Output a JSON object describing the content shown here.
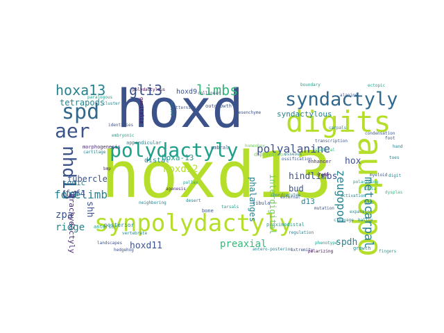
{
  "cloud": {
    "background": "#ffffff",
    "palette": {
      "navy": "#3b528b",
      "blue": "#31688e",
      "teal": "#26828e",
      "cyan": "#1f9e89",
      "green": "#35b779",
      "lime": "#6ece58",
      "yellow": "#b5de2b",
      "purple": "#482878",
      "dark": "#440154"
    },
    "words": [
      {
        "text": "hoxd",
        "color": "navy"
      },
      {
        "text": "hoxd13",
        "color": "yellow"
      },
      {
        "text": "synpolydactyly",
        "color": "yellow"
      },
      {
        "text": "autopod",
        "color": "yellow"
      },
      {
        "text": "digits",
        "color": "yellow"
      },
      {
        "text": "polydactyly",
        "color": "cyan"
      },
      {
        "text": "syndactyly",
        "color": "blue"
      },
      {
        "text": "spd",
        "color": "blue"
      },
      {
        "text": "aer",
        "color": "navy"
      },
      {
        "text": "nhd13",
        "color": "navy"
      },
      {
        "text": "hoxa13",
        "color": "teal"
      },
      {
        "text": "gli3",
        "color": "navy"
      },
      {
        "text": "limbs",
        "color": "green"
      },
      {
        "text": "polyalanine",
        "color": "navy"
      },
      {
        "text": "metacarpal",
        "color": "teal"
      },
      {
        "text": "zeugopod",
        "color": "teal"
      },
      {
        "text": "forelimb",
        "color": "teal"
      },
      {
        "text": "preaxial",
        "color": "green"
      },
      {
        "text": "hoxd11",
        "color": "navy"
      },
      {
        "text": "spdh",
        "color": "teal"
      },
      {
        "text": "hindlimbs",
        "color": "navy"
      },
      {
        "text": "tetrapods",
        "color": "teal"
      },
      {
        "text": "tubercle",
        "color": "navy"
      },
      {
        "text": "brachydactyly",
        "color": "purple"
      },
      {
        "text": "fgf4",
        "color": "navy"
      },
      {
        "text": "sonic",
        "color": "teal"
      },
      {
        "text": "zpa",
        "color": "navy"
      },
      {
        "text": "ridge",
        "color": "teal"
      },
      {
        "text": "shh",
        "color": "navy"
      },
      {
        "text": "hoxd12",
        "color": "yellow"
      },
      {
        "text": "hoxa-13",
        "color": "cyan"
      },
      {
        "text": "hoxd9",
        "color": "navy"
      },
      {
        "text": "hox",
        "color": "navy"
      },
      {
        "text": "bud",
        "color": "navy"
      },
      {
        "text": "d13",
        "color": "teal"
      },
      {
        "text": "phalanges",
        "color": "teal"
      },
      {
        "text": "interdigital",
        "color": "lime"
      },
      {
        "text": "syndactylous",
        "color": "teal"
      },
      {
        "text": "morphogenesis",
        "color": "purple"
      },
      {
        "text": "appendicular",
        "color": "teal"
      },
      {
        "text": "patterning",
        "color": "navy"
      },
      {
        "text": "polarising",
        "color": "cyan"
      },
      {
        "text": "cartilage",
        "color": "teal"
      },
      {
        "text": "ectopic",
        "color": "cyan"
      },
      {
        "text": "genitalia",
        "color": "dark"
      },
      {
        "text": "distal",
        "color": "teal"
      },
      {
        "text": "posterior",
        "color": "teal"
      },
      {
        "text": "anterior",
        "color": "cyan"
      },
      {
        "text": "mesenchyme",
        "color": "navy"
      },
      {
        "text": "duplication",
        "color": "lime"
      },
      {
        "text": "extremity",
        "color": "navy"
      },
      {
        "text": "polarizing",
        "color": "dark"
      },
      {
        "text": "limb",
        "color": "cyan"
      },
      {
        "text": "homeobox",
        "color": "lime"
      },
      {
        "text": "umbral",
        "color": "navy"
      },
      {
        "text": "osseous",
        "color": "teal"
      },
      {
        "text": "tibia",
        "color": "green"
      },
      {
        "text": "fibula",
        "color": "navy"
      },
      {
        "text": "carpals",
        "color": "teal"
      },
      {
        "text": "tarsals",
        "color": "cyan"
      },
      {
        "text": "enhancer",
        "color": "purple"
      },
      {
        "text": "regulation",
        "color": "teal"
      },
      {
        "text": "condensation",
        "color": "navy"
      },
      {
        "text": "skeletal",
        "color": "green"
      },
      {
        "text": "chondrocytes",
        "color": "teal"
      },
      {
        "text": "mutation",
        "color": "navy"
      },
      {
        "text": "phenotype",
        "color": "cyan"
      },
      {
        "text": "ossification",
        "color": "navy"
      },
      {
        "text": "expansion",
        "color": "teal"
      },
      {
        "text": "alanine",
        "color": "navy"
      },
      {
        "text": "paralogous",
        "color": "cyan"
      },
      {
        "text": "neighboring",
        "color": "teal"
      },
      {
        "text": "external",
        "color": "navy"
      },
      {
        "text": "proximodistal",
        "color": "cyan"
      },
      {
        "text": "growth",
        "color": "teal"
      },
      {
        "text": "outgrowth",
        "color": "navy"
      },
      {
        "text": "antero-posterior",
        "color": "teal"
      },
      {
        "text": "hedgehog",
        "color": "navy"
      },
      {
        "text": "fgf8",
        "color": "dark"
      },
      {
        "text": "embryonic",
        "color": "cyan"
      },
      {
        "text": "vertebrate",
        "color": "teal"
      },
      {
        "text": "bmp",
        "color": "purple"
      },
      {
        "text": "cluster",
        "color": "teal"
      },
      {
        "text": "identities",
        "color": "navy"
      },
      {
        "text": "polydactylous",
        "color": "dark"
      },
      {
        "text": "agenesis",
        "color": "purple"
      },
      {
        "text": "nested",
        "color": "teal"
      },
      {
        "text": "landscapes",
        "color": "navy"
      },
      {
        "text": "cleavage",
        "color": "teal"
      },
      {
        "text": "collinear",
        "color": "navy"
      },
      {
        "text": "desert",
        "color": "teal"
      },
      {
        "text": "boundary",
        "color": "cyan"
      },
      {
        "text": "transcription",
        "color": "navy"
      },
      {
        "text": "activation",
        "color": "teal"
      },
      {
        "text": "myeloid",
        "color": "navy"
      },
      {
        "text": "pollex",
        "color": "cyan"
      },
      {
        "text": "hallux",
        "color": "teal"
      },
      {
        "text": "dysplasia",
        "color": "green"
      },
      {
        "text": "bone",
        "color": "navy"
      },
      {
        "text": "digit",
        "color": "teal"
      },
      {
        "text": "foot",
        "color": "navy"
      },
      {
        "text": "hand",
        "color": "teal"
      },
      {
        "text": "fingers",
        "color": "cyan"
      },
      {
        "text": "toes",
        "color": "teal"
      }
    ]
  }
}
